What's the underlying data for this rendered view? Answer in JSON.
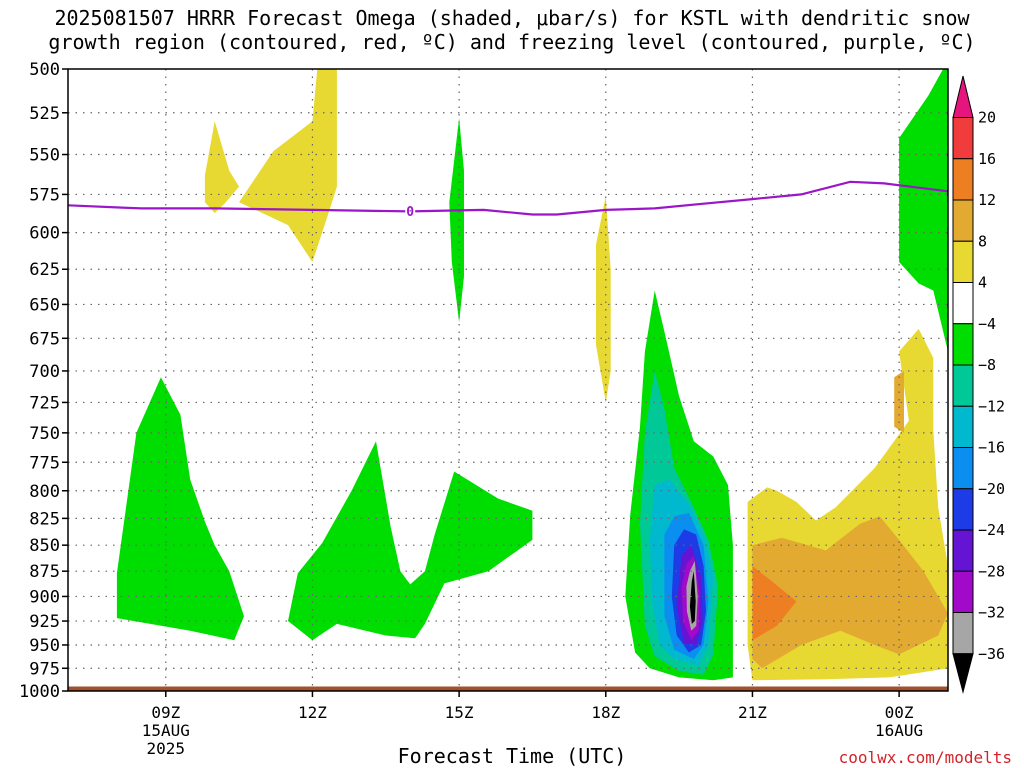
{
  "title": {
    "line1": "2025081507 HRRR Forecast Omega (shaded, μbar/s) for KSTL with dendritic snow",
    "line2": "growth region (contoured, red, ºC) and freezing level (contoured, purple, ºC)"
  },
  "credit": "coolwx.com/modelts",
  "chart_data": {
    "type": "contour",
    "title": "2025081507 HRRR Forecast Omega (shaded, μbar/s) for KSTL with dendritic snow growth region (contoured, red, ºC) and freezing level (contoured, purple, ºC)",
    "xlabel": "Forecast Time (UTC)",
    "ylabel": "",
    "x_range_hours": [
      7.0,
      25.0
    ],
    "x_ticks": [
      {
        "hour": 9,
        "label": "09Z",
        "sub1": "15AUG",
        "sub2": "2025"
      },
      {
        "hour": 12,
        "label": "12Z",
        "sub1": "",
        "sub2": ""
      },
      {
        "hour": 15,
        "label": "15Z",
        "sub1": "",
        "sub2": ""
      },
      {
        "hour": 18,
        "label": "18Z",
        "sub1": "",
        "sub2": ""
      },
      {
        "hour": 21,
        "label": "21Z",
        "sub1": "",
        "sub2": ""
      },
      {
        "hour": 24,
        "label": "00Z",
        "sub1": "16AUG",
        "sub2": ""
      }
    ],
    "y_axis": "pressure (hPa), log scale, inverted",
    "y_range_hpa": [
      500,
      1000
    ],
    "y_ticks": [
      500,
      525,
      550,
      575,
      600,
      625,
      650,
      675,
      700,
      725,
      750,
      775,
      800,
      825,
      850,
      875,
      900,
      925,
      950,
      975,
      1000
    ],
    "grid": true,
    "colorbar": {
      "labels": [
        "20",
        "16",
        "12",
        "8",
        "4",
        "−4",
        "−8",
        "−12",
        "−16",
        "−20",
        "−24",
        "−28",
        "−32",
        "−36"
      ],
      "bins": [
        {
          "range": "20+",
          "color": "#e6147d"
        },
        {
          "range": "16 to 20",
          "color": "#f03c3c"
        },
        {
          "range": "12 to 16",
          "color": "#ee7e22"
        },
        {
          "range": "8 to 12",
          "color": "#e3aa32"
        },
        {
          "range": "4 to 8",
          "color": "#e8d832"
        },
        {
          "range": "-4 to 4",
          "color": "#ffffff"
        },
        {
          "range": "-8 to -4",
          "color": "#00dd00"
        },
        {
          "range": "-12 to -8",
          "color": "#00c896"
        },
        {
          "range": "-16 to -12",
          "color": "#00b9cf"
        },
        {
          "range": "-20 to -16",
          "color": "#0a8ff0"
        },
        {
          "range": "-24 to -20",
          "color": "#1e3ce6"
        },
        {
          "range": "-28 to -24",
          "color": "#6414d2"
        },
        {
          "range": "-32 to -28",
          "color": "#a00ac8"
        },
        {
          "range": "-36 to -32",
          "color": "#a6a6a6"
        },
        {
          "range": "< -36",
          "color": "#000000"
        }
      ]
    },
    "freezing_level": {
      "label": "0",
      "color": "#9a16c8",
      "points": [
        {
          "hour": 7.0,
          "hpa": 582
        },
        {
          "hour": 8.5,
          "hpa": 584
        },
        {
          "hour": 10.0,
          "hpa": 584
        },
        {
          "hour": 12.0,
          "hpa": 585
        },
        {
          "hour": 14.0,
          "hpa": 586
        },
        {
          "hour": 15.5,
          "hpa": 585
        },
        {
          "hour": 16.5,
          "hpa": 588
        },
        {
          "hour": 17.0,
          "hpa": 588
        },
        {
          "hour": 18.0,
          "hpa": 585
        },
        {
          "hour": 19.0,
          "hpa": 584
        },
        {
          "hour": 20.0,
          "hpa": 581
        },
        {
          "hour": 21.0,
          "hpa": 578
        },
        {
          "hour": 22.0,
          "hpa": 575
        },
        {
          "hour": 23.0,
          "hpa": 567
        },
        {
          "hour": 23.7,
          "hpa": 568
        },
        {
          "hour": 25.0,
          "hpa": 573
        }
      ]
    },
    "features": [
      {
        "name": "green-left-lobe",
        "level": "-8 to -4",
        "color": "#00dd00",
        "points": [
          [
            8.0,
            877
          ],
          [
            8.4,
            750
          ],
          [
            8.9,
            705
          ],
          [
            9.3,
            735
          ],
          [
            9.5,
            790
          ],
          [
            9.8,
            828
          ],
          [
            10.0,
            850
          ],
          [
            10.3,
            875
          ],
          [
            10.6,
            920
          ],
          [
            10.4,
            945
          ],
          [
            9.5,
            935
          ],
          [
            8.0,
            922
          ]
        ]
      },
      {
        "name": "green-mid-lobe",
        "level": "-8 to -4",
        "color": "#00dd00",
        "points": [
          [
            11.7,
            877
          ],
          [
            12.2,
            848
          ],
          [
            12.8,
            800
          ],
          [
            13.3,
            757
          ],
          [
            13.6,
            833
          ],
          [
            13.8,
            875
          ],
          [
            14.0,
            888
          ],
          [
            14.3,
            875
          ],
          [
            14.5,
            840
          ],
          [
            14.9,
            783
          ],
          [
            15.8,
            807
          ],
          [
            16.5,
            818
          ],
          [
            16.5,
            845
          ],
          [
            15.6,
            875
          ],
          [
            14.7,
            887
          ],
          [
            14.3,
            928
          ],
          [
            14.1,
            943
          ],
          [
            13.5,
            940
          ],
          [
            12.5,
            928
          ],
          [
            12.0,
            945
          ],
          [
            11.5,
            925
          ],
          [
            11.7,
            877
          ]
        ]
      },
      {
        "name": "green-upper-sliver",
        "level": "-8 to -4",
        "color": "#00dd00",
        "points": [
          [
            14.8,
            580
          ],
          [
            15.0,
            528
          ],
          [
            15.1,
            560
          ],
          [
            15.1,
            630
          ],
          [
            15.0,
            663
          ],
          [
            14.85,
            620
          ]
        ]
      },
      {
        "name": "yellow-upper-a",
        "level": "4 to 8",
        "color": "#e8d832",
        "points": [
          [
            9.8,
            563
          ],
          [
            10.0,
            530
          ],
          [
            10.3,
            560
          ],
          [
            10.5,
            570
          ],
          [
            10.2,
            581
          ],
          [
            10.0,
            587
          ],
          [
            9.8,
            580
          ]
        ]
      },
      {
        "name": "yellow-upper-b",
        "level": "4 to 8",
        "color": "#e8d832",
        "points": [
          [
            10.5,
            580
          ],
          [
            11.2,
            548
          ],
          [
            12.0,
            530
          ],
          [
            12.1,
            500
          ],
          [
            12.5,
            500
          ],
          [
            12.5,
            570
          ],
          [
            12.3,
            590
          ],
          [
            12.0,
            620
          ],
          [
            11.5,
            595
          ]
        ]
      },
      {
        "name": "yellow-sliver-18z",
        "level": "4 to 8",
        "color": "#e8d832",
        "points": [
          [
            17.8,
            608
          ],
          [
            18.0,
            576
          ],
          [
            18.1,
            625
          ],
          [
            18.1,
            700
          ],
          [
            18.0,
            725
          ],
          [
            17.8,
            680
          ]
        ]
      },
      {
        "name": "yellow-right-region",
        "level": "4 to 8",
        "color": "#e8d832",
        "points": [
          [
            20.9,
            810
          ],
          [
            21.3,
            797
          ],
          [
            21.5,
            800
          ],
          [
            21.9,
            810
          ],
          [
            22.3,
            827
          ],
          [
            22.7,
            815
          ],
          [
            23.5,
            780
          ],
          [
            24.2,
            740
          ],
          [
            24.0,
            685
          ],
          [
            24.4,
            668
          ],
          [
            24.7,
            690
          ],
          [
            24.7,
            748
          ],
          [
            24.8,
            815
          ],
          [
            25.0,
            870
          ],
          [
            25.0,
            975
          ],
          [
            24.4,
            980
          ],
          [
            23.8,
            985
          ],
          [
            22.5,
            987
          ],
          [
            21.0,
            988
          ],
          [
            20.9,
            950
          ],
          [
            20.9,
            880
          ]
        ]
      },
      {
        "name": "orange-right-region",
        "level": "8 to 12",
        "color": "#e3aa32",
        "points": [
          [
            21.0,
            850
          ],
          [
            21.6,
            843
          ],
          [
            22.5,
            855
          ],
          [
            23.2,
            830
          ],
          [
            23.6,
            823
          ],
          [
            24.0,
            845
          ],
          [
            24.5,
            875
          ],
          [
            25.0,
            917
          ],
          [
            24.8,
            940
          ],
          [
            24.0,
            960
          ],
          [
            23.5,
            950
          ],
          [
            22.8,
            935
          ],
          [
            22.0,
            950
          ],
          [
            21.2,
            975
          ],
          [
            21.0,
            965
          ]
        ]
      },
      {
        "name": "orange-small-patch",
        "level": "8 to 12",
        "color": "#e3aa32",
        "points": [
          [
            23.9,
            705
          ],
          [
            24.1,
            700
          ],
          [
            24.1,
            750
          ],
          [
            23.9,
            745
          ]
        ]
      },
      {
        "name": "dark-orange-patch",
        "level": "12 to 16",
        "color": "#ee7e22",
        "points": [
          [
            21.0,
            870
          ],
          [
            21.4,
            885
          ],
          [
            21.9,
            905
          ],
          [
            21.5,
            930
          ],
          [
            21.0,
            945
          ]
        ]
      },
      {
        "name": "green-bottom-core",
        "level": "-8 to -4",
        "color": "#00dd00",
        "points": [
          [
            18.5,
            822
          ],
          [
            18.7,
            745
          ],
          [
            18.8,
            685
          ],
          [
            19.0,
            640
          ],
          [
            19.2,
            670
          ],
          [
            19.5,
            720
          ],
          [
            19.8,
            757
          ],
          [
            20.2,
            770
          ],
          [
            20.5,
            795
          ],
          [
            20.6,
            850
          ],
          [
            20.6,
            925
          ],
          [
            20.6,
            985
          ],
          [
            20.2,
            988
          ],
          [
            19.5,
            985
          ],
          [
            18.9,
            975
          ],
          [
            18.6,
            958
          ],
          [
            18.4,
            900
          ]
        ]
      },
      {
        "name": "teal-core",
        "level": "-12 to -8",
        "color": "#00c896",
        "points": [
          [
            18.7,
            830
          ],
          [
            18.8,
            750
          ],
          [
            19.0,
            700
          ],
          [
            19.2,
            730
          ],
          [
            19.4,
            780
          ],
          [
            19.8,
            815
          ],
          [
            20.1,
            845
          ],
          [
            20.3,
            890
          ],
          [
            20.2,
            960
          ],
          [
            20.0,
            982
          ],
          [
            19.5,
            978
          ],
          [
            19.0,
            962
          ],
          [
            18.8,
            930
          ]
        ]
      },
      {
        "name": "cyan-core",
        "level": "-16 to -12",
        "color": "#00b9cf",
        "points": [
          [
            18.9,
            845
          ],
          [
            19.0,
            795
          ],
          [
            19.3,
            790
          ],
          [
            19.7,
            812
          ],
          [
            20.0,
            840
          ],
          [
            20.2,
            880
          ],
          [
            20.1,
            950
          ],
          [
            19.9,
            972
          ],
          [
            19.4,
            965
          ],
          [
            19.1,
            950
          ],
          [
            18.95,
            905
          ]
        ]
      },
      {
        "name": "blue-core",
        "level": "-20 to -16",
        "color": "#0a8ff0",
        "points": [
          [
            19.2,
            840
          ],
          [
            19.4,
            823
          ],
          [
            19.7,
            820
          ],
          [
            20.0,
            850
          ],
          [
            20.1,
            905
          ],
          [
            20.0,
            950
          ],
          [
            19.8,
            965
          ],
          [
            19.4,
            955
          ],
          [
            19.2,
            920
          ]
        ]
      },
      {
        "name": "dark-blue-core",
        "level": "-24 to -20",
        "color": "#1e3ce6",
        "points": [
          [
            19.4,
            850
          ],
          [
            19.6,
            835
          ],
          [
            19.85,
            840
          ],
          [
            20.0,
            870
          ],
          [
            20.05,
            915
          ],
          [
            19.95,
            950
          ],
          [
            19.7,
            958
          ],
          [
            19.45,
            940
          ],
          [
            19.35,
            900
          ]
        ]
      },
      {
        "name": "violet-core",
        "level": "-28 to -24",
        "color": "#6414d2",
        "points": [
          [
            19.55,
            860
          ],
          [
            19.75,
            850
          ],
          [
            19.95,
            880
          ],
          [
            19.98,
            925
          ],
          [
            19.85,
            950
          ],
          [
            19.6,
            948
          ],
          [
            19.45,
            910
          ]
        ]
      },
      {
        "name": "purple-core",
        "level": "-32 to -28",
        "color": "#a00ac8",
        "points": [
          [
            19.65,
            868
          ],
          [
            19.8,
            860
          ],
          [
            19.92,
            895
          ],
          [
            19.9,
            935
          ],
          [
            19.75,
            945
          ],
          [
            19.58,
            925
          ],
          [
            19.55,
            890
          ]
        ]
      },
      {
        "name": "gray-core",
        "level": "-36 to -32",
        "color": "#a6a6a6",
        "points": [
          [
            19.72,
            875
          ],
          [
            19.82,
            865
          ],
          [
            19.88,
            900
          ],
          [
            19.85,
            930
          ],
          [
            19.75,
            935
          ],
          [
            19.66,
            915
          ],
          [
            19.65,
            890
          ]
        ]
      },
      {
        "name": "black-core",
        "level": "< -36",
        "color": "#000000",
        "points": [
          [
            19.76,
            885
          ],
          [
            19.8,
            875
          ],
          [
            19.84,
            905
          ],
          [
            19.82,
            925
          ],
          [
            19.76,
            928
          ],
          [
            19.72,
            910
          ]
        ]
      },
      {
        "name": "green-upper-right",
        "level": "-8 to -4",
        "color": "#00dd00",
        "points": [
          [
            24.0,
            565
          ],
          [
            24.0,
            540
          ],
          [
            24.6,
            515
          ],
          [
            24.9,
            500
          ],
          [
            25.0,
            500
          ],
          [
            25.0,
            685
          ],
          [
            24.7,
            640
          ],
          [
            24.4,
            635
          ],
          [
            24.0,
            620
          ]
        ]
      }
    ],
    "terrain": {
      "color": "#a0522d",
      "top_hpa": 995
    }
  },
  "colors": {
    "freezing_level": "#9a16c8",
    "credit": "#d2232a",
    "grid": "#666666",
    "terrain": "#a0522d"
  }
}
